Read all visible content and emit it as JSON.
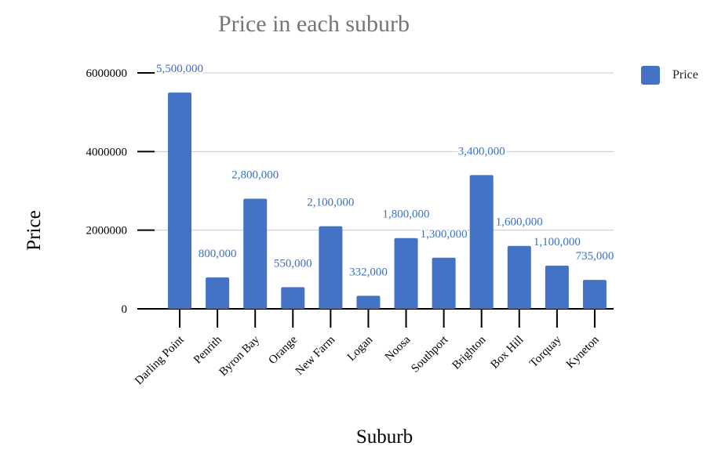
{
  "chart_data": {
    "type": "bar",
    "title": "Price in each suburb",
    "xlabel": "Suburb",
    "ylabel": "Price",
    "categories": [
      "Darling Point",
      "Penrith",
      "Byron Bay",
      "Orange",
      "New Farm",
      "Logan",
      "Noosa",
      "Southport",
      "Brighton",
      "Box Hill",
      "Torquay",
      "Kyneton"
    ],
    "series": [
      {
        "name": "Price",
        "values": [
          5500000,
          800000,
          2800000,
          550000,
          2100000,
          332000,
          1800000,
          1300000,
          3400000,
          1600000,
          1100000,
          735000
        ],
        "data_labels": [
          "5,500,000",
          "800,000",
          "2,800,000",
          "550,000",
          "2,100,000",
          "332,000",
          "1,800,000",
          "1,300,000",
          "3,400,000",
          "1,600,000",
          "1,100,000",
          "735,000"
        ]
      }
    ],
    "ylim": [
      0,
      6000000
    ],
    "yticks": [
      0,
      2000000,
      4000000,
      6000000
    ],
    "ytick_labels": [
      "0",
      "2000000",
      "4000000",
      "6000000"
    ],
    "grid": true,
    "legend_position": "top-right",
    "colors": {
      "bar": "#4472c4",
      "data_label": "#3c6fc9",
      "grid": "#c8c8c8",
      "title": "#757575"
    }
  }
}
